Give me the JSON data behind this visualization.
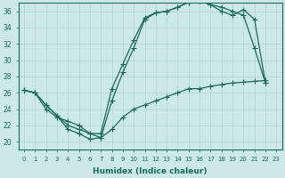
{
  "xlabel": "Humidex (Indice chaleur)",
  "bg_color": "#cce8e8",
  "line_color": "#1a6b5a",
  "grid_color": "#b8d8d0",
  "xlim": [
    -0.5,
    23.5
  ],
  "ylim": [
    19,
    37
  ],
  "yticks": [
    20,
    22,
    24,
    26,
    28,
    30,
    32,
    34,
    36
  ],
  "xticks": [
    0,
    1,
    2,
    3,
    4,
    5,
    6,
    7,
    8,
    9,
    10,
    11,
    12,
    13,
    14,
    15,
    16,
    17,
    18,
    19,
    20,
    21,
    22,
    23
  ],
  "line1_x": [
    0,
    1,
    2,
    3,
    4,
    5,
    6,
    7,
    8,
    9,
    10,
    11,
    12,
    13,
    14,
    15,
    16,
    17,
    18,
    19,
    20,
    21,
    22
  ],
  "line1_y": [
    26.3,
    26.0,
    24.5,
    23.2,
    21.5,
    21.0,
    20.3,
    20.5,
    25.0,
    28.5,
    31.5,
    35.0,
    35.8,
    36.0,
    36.5,
    37.1,
    37.3,
    36.8,
    36.5,
    36.0,
    35.5,
    31.5,
    27.2
  ],
  "line2_x": [
    0,
    1,
    2,
    3,
    4,
    5,
    6,
    7,
    8,
    9,
    10,
    11,
    12,
    13,
    14,
    15,
    16,
    17,
    18,
    19,
    20,
    21,
    22
  ],
  "line2_y": [
    26.3,
    26.0,
    24.5,
    23.2,
    22.0,
    21.5,
    21.0,
    21.0,
    26.5,
    29.5,
    32.5,
    35.2,
    35.8,
    36.0,
    36.5,
    37.1,
    37.3,
    36.8,
    36.0,
    35.5,
    36.2,
    35.0,
    27.2
  ],
  "line3_x": [
    0,
    1,
    2,
    3,
    4,
    5,
    6,
    7,
    8,
    9,
    10,
    11,
    12,
    13,
    14,
    15,
    16,
    17,
    18,
    19,
    20,
    21,
    22
  ],
  "line3_y": [
    26.3,
    26.0,
    24.0,
    23.0,
    22.5,
    22.0,
    21.0,
    20.5,
    21.5,
    23.0,
    24.0,
    24.5,
    25.0,
    25.5,
    26.0,
    26.5,
    26.5,
    26.8,
    27.0,
    27.2,
    27.3,
    27.4,
    27.5
  ],
  "markersize": 2.5
}
